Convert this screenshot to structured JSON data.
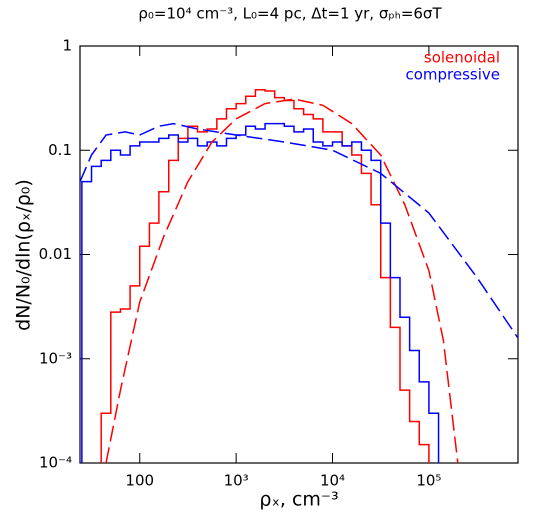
{
  "chart_data": {
    "type": "line",
    "title": "ρ₀=10⁴ cm⁻³,  L₀=4 pc,  Δt=1 yr,  σₚₕ=6σT",
    "x_label": "ρₓ, cm⁻³",
    "y_label": "dN/N₀/dln(ρₓ/ρ₀)",
    "log_x": true,
    "log_y": true,
    "legend": "top-right",
    "xlim": [
      24,
      840000
    ],
    "ylim": [
      0.0001,
      1
    ],
    "xticks": [
      100,
      {
        "value": 1000,
        "label": "10³"
      },
      {
        "value": 10000,
        "label": "10⁴"
      },
      {
        "value": 100000,
        "label": "10⁵"
      }
    ],
    "yticks": [
      1,
      0.1,
      0.01,
      {
        "value": 0.001,
        "label": "10⁻³"
      },
      {
        "value": 0.0001,
        "label": "10⁻⁴"
      }
    ],
    "series": [
      {
        "name": "solenoidal",
        "color": "#ff0000",
        "style": "step",
        "bins": [
          25.1,
          31.6,
          39.8,
          50.1,
          63.1,
          79.4,
          100,
          126,
          158,
          200,
          251,
          316,
          398,
          501,
          631,
          794,
          1000,
          1259,
          1585,
          1995,
          2512,
          3162,
          3981,
          5012,
          6310,
          7943,
          10000,
          12589,
          15849,
          19953,
          25119,
          31623,
          39811,
          50119,
          63096,
          79433,
          100000,
          125893
        ],
        "values": [
          null,
          null,
          0.0003,
          0.0028,
          0.003,
          0.005,
          0.012,
          0.02,
          0.04,
          0.08,
          0.13,
          0.17,
          0.15,
          0.16,
          0.2,
          0.25,
          0.28,
          0.33,
          0.38,
          0.37,
          0.32,
          0.3,
          0.25,
          0.22,
          0.2,
          0.15,
          0.15,
          0.11,
          0.09,
          0.06,
          0.03,
          0.006,
          0.002,
          0.0005,
          0.00025,
          0.00015,
          null
        ]
      },
      {
        "name": "compressive",
        "color": "#0000ff",
        "style": "step",
        "bins": [
          25.1,
          31.6,
          39.8,
          50.1,
          63.1,
          79.4,
          100,
          126,
          158,
          200,
          251,
          316,
          398,
          501,
          631,
          794,
          1000,
          1259,
          1585,
          1995,
          2512,
          3162,
          3981,
          5012,
          6310,
          7943,
          10000,
          12589,
          15849,
          19953,
          25119,
          31623,
          39811,
          50119,
          63096,
          79433,
          100000,
          125893
        ],
        "values": [
          0.05,
          0.07,
          0.08,
          0.1,
          0.09,
          0.11,
          0.12,
          0.12,
          0.13,
          0.14,
          0.12,
          0.13,
          0.11,
          0.12,
          0.11,
          0.13,
          0.14,
          0.17,
          0.16,
          0.18,
          0.18,
          0.17,
          0.15,
          0.16,
          0.12,
          0.11,
          0.12,
          0.11,
          0.12,
          0.1,
          0.08,
          0.02,
          0.006,
          0.0025,
          0.0012,
          0.0006,
          0.0003
        ]
      },
      {
        "color": "#ff0000",
        "style": "dashed",
        "x": [
          44.7,
          63.1,
          100,
          178,
          316,
          562,
          1000,
          1995,
          3981,
          7943,
          15849,
          31623,
          56234,
          100000,
          141254,
          199526
        ],
        "values": [
          0.0001,
          0.0005,
          0.0035,
          0.015,
          0.05,
          0.12,
          0.2,
          0.28,
          0.31,
          0.27,
          0.18,
          0.09,
          0.03,
          0.007,
          0.0015,
          0.0001
        ]
      },
      {
        "color": "#0000ff",
        "style": "dashed",
        "x": [
          24,
          31.6,
          44.7,
          70.8,
          100,
          158,
          224,
          398,
          1000,
          3162,
          10000,
          31623,
          100000,
          316228,
          831764
        ],
        "values": [
          0.05,
          0.09,
          0.14,
          0.15,
          0.14,
          0.17,
          0.18,
          0.16,
          0.14,
          0.12,
          0.1,
          0.06,
          0.025,
          0.006,
          0.0016
        ]
      }
    ]
  }
}
